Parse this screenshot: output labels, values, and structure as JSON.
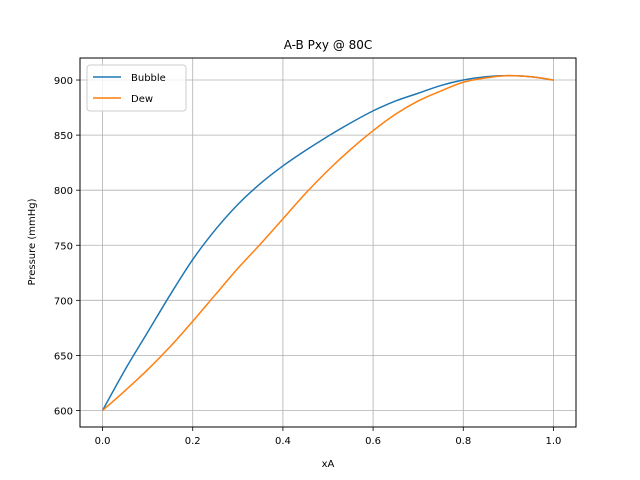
{
  "chart_data": {
    "type": "line",
    "title": "A-B Pxy @ 80C",
    "xlabel": "xA",
    "ylabel": "Pressure (mmHg)",
    "xlim": [
      -0.05,
      1.05
    ],
    "ylim": [
      585,
      920
    ],
    "grid": true,
    "legend_position": "top-left",
    "xticks": [
      0.0,
      0.2,
      0.4,
      0.6,
      0.8,
      1.0
    ],
    "xtick_labels": [
      "0.0",
      "0.2",
      "0.4",
      "0.6",
      "0.8",
      "1.0"
    ],
    "yticks": [
      600,
      650,
      700,
      750,
      800,
      850,
      900
    ],
    "ytick_labels": [
      "600",
      "650",
      "700",
      "750",
      "800",
      "850",
      "900"
    ],
    "series": [
      {
        "name": "Bubble",
        "color": "#1f77b4",
        "x": [
          0.0,
          0.05,
          0.1,
          0.15,
          0.2,
          0.25,
          0.3,
          0.35,
          0.4,
          0.45,
          0.5,
          0.55,
          0.6,
          0.65,
          0.7,
          0.75,
          0.8,
          0.85,
          0.9,
          0.95,
          1.0
        ],
        "y": [
          600,
          637,
          671,
          705,
          737,
          764,
          787,
          806,
          822,
          836,
          849,
          861,
          872,
          881,
          888,
          895,
          900,
          903,
          904,
          903,
          900
        ]
      },
      {
        "name": "Dew",
        "color": "#ff7f0e",
        "x": [
          0.0,
          0.05,
          0.1,
          0.15,
          0.2,
          0.25,
          0.3,
          0.35,
          0.4,
          0.45,
          0.5,
          0.55,
          0.6,
          0.65,
          0.7,
          0.75,
          0.8,
          0.85,
          0.9,
          0.95,
          1.0
        ],
        "y": [
          600,
          618,
          637,
          658,
          681,
          705,
          729,
          751,
          774,
          797,
          818,
          837,
          854,
          869,
          881,
          890,
          898,
          902,
          904,
          903,
          900
        ]
      }
    ]
  }
}
